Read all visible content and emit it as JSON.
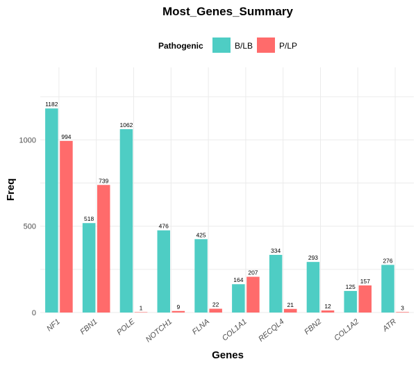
{
  "chart_data": {
    "type": "bar",
    "title": "Most_Genes_Summary",
    "xlabel": "Genes",
    "ylabel": "Freq",
    "ylim": [
      0,
      1420
    ],
    "yticks": [
      0,
      500,
      1000
    ],
    "grid": true,
    "legend_title": "Pathogenic",
    "legend_position": "top",
    "categories": [
      "NF1",
      "FBN1",
      "POLE",
      "NOTCH1",
      "FLNA",
      "COL1A1",
      "RECQL4",
      "FBN2",
      "COL1A2",
      "ATR"
    ],
    "series": [
      {
        "name": "B/LB",
        "color": "#4ECDC4",
        "values": [
          1182,
          518,
          1062,
          476,
          425,
          164,
          334,
          293,
          125,
          276
        ]
      },
      {
        "name": "P/LP",
        "color": "#FF6B6B",
        "values": [
          994,
          739,
          1,
          9,
          22,
          207,
          21,
          12,
          157,
          3
        ]
      }
    ]
  }
}
